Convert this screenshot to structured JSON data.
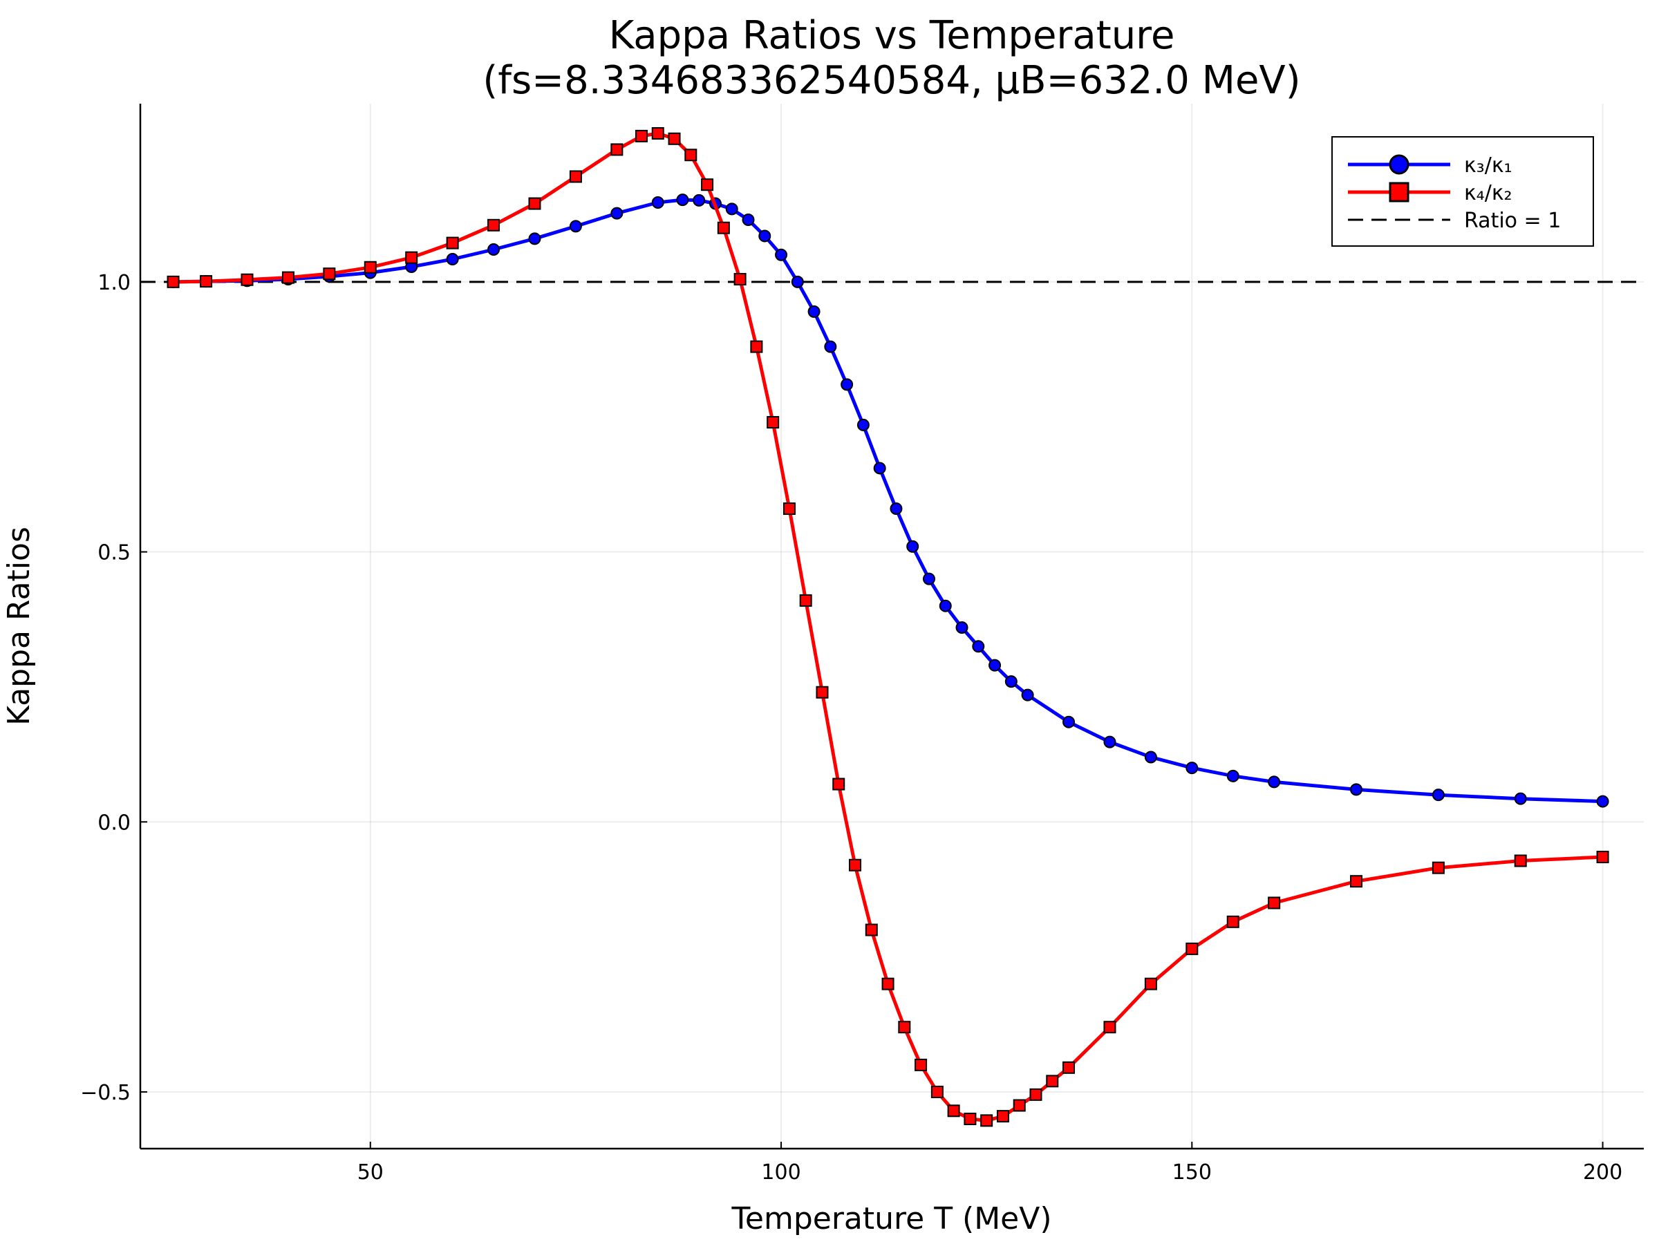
{
  "chart_data": {
    "type": "line",
    "title_line1": "Kappa Ratios vs Temperature",
    "title_line2": "(fs=8.334683362540584, μB=632.0 MeV)",
    "xlabel": "Temperature T (MeV)",
    "ylabel": "Kappa Ratios",
    "xlim": [
      22,
      205
    ],
    "ylim": [
      -0.605,
      1.33
    ],
    "xticks": [
      50,
      100,
      150,
      200
    ],
    "yticks": [
      -0.5,
      0.0,
      0.5,
      1.0
    ],
    "xtick_labels": [
      "50",
      "100",
      "150",
      "200"
    ],
    "ytick_labels": [
      "−0.5",
      "0.0",
      "0.5",
      "1.0"
    ],
    "grid": true,
    "legend_position": "top-right",
    "reference_line": {
      "name": "Ratio = 1",
      "y": 1.0,
      "color": "#000000",
      "style": "dashed"
    },
    "series": [
      {
        "name": "κ₃/κ₁",
        "color": "#0000ff",
        "marker": "circle",
        "x": [
          26,
          30,
          35,
          40,
          45,
          50,
          55,
          60,
          65,
          70,
          75,
          80,
          85,
          88,
          90,
          92,
          94,
          96,
          98,
          100,
          102,
          104,
          106,
          108,
          110,
          112,
          114,
          116,
          118,
          120,
          122,
          124,
          126,
          128,
          130,
          135,
          140,
          145,
          150,
          155,
          160,
          170,
          180,
          190,
          200
        ],
        "y": [
          1.0,
          1.001,
          1.002,
          1.005,
          1.01,
          1.017,
          1.028,
          1.042,
          1.06,
          1.08,
          1.103,
          1.127,
          1.147,
          1.152,
          1.151,
          1.145,
          1.135,
          1.115,
          1.085,
          1.05,
          1.0,
          0.945,
          0.88,
          0.81,
          0.735,
          0.655,
          0.58,
          0.51,
          0.45,
          0.4,
          0.36,
          0.325,
          0.29,
          0.26,
          0.235,
          0.185,
          0.148,
          0.12,
          0.1,
          0.085,
          0.074,
          0.06,
          0.05,
          0.043,
          0.038
        ]
      },
      {
        "name": "κ₄/κ₂",
        "color": "#ff0000",
        "marker": "square",
        "x": [
          26,
          30,
          35,
          40,
          45,
          50,
          55,
          60,
          65,
          70,
          75,
          80,
          83,
          85,
          87,
          89,
          91,
          93,
          95,
          97,
          99,
          101,
          103,
          105,
          107,
          109,
          111,
          113,
          115,
          117,
          119,
          121,
          123,
          125,
          127,
          129,
          131,
          133,
          135,
          140,
          145,
          150,
          155,
          160,
          170,
          180,
          190,
          200
        ],
        "y": [
          1.0,
          1.001,
          1.004,
          1.008,
          1.015,
          1.027,
          1.045,
          1.072,
          1.105,
          1.145,
          1.195,
          1.245,
          1.27,
          1.275,
          1.265,
          1.235,
          1.18,
          1.1,
          1.005,
          0.88,
          0.74,
          0.58,
          0.41,
          0.24,
          0.07,
          -0.08,
          -0.2,
          -0.3,
          -0.38,
          -0.45,
          -0.5,
          -0.535,
          -0.55,
          -0.553,
          -0.545,
          -0.525,
          -0.505,
          -0.48,
          -0.455,
          -0.38,
          -0.3,
          -0.235,
          -0.185,
          -0.15,
          -0.11,
          -0.085,
          -0.072,
          -0.065
        ]
      }
    ]
  }
}
